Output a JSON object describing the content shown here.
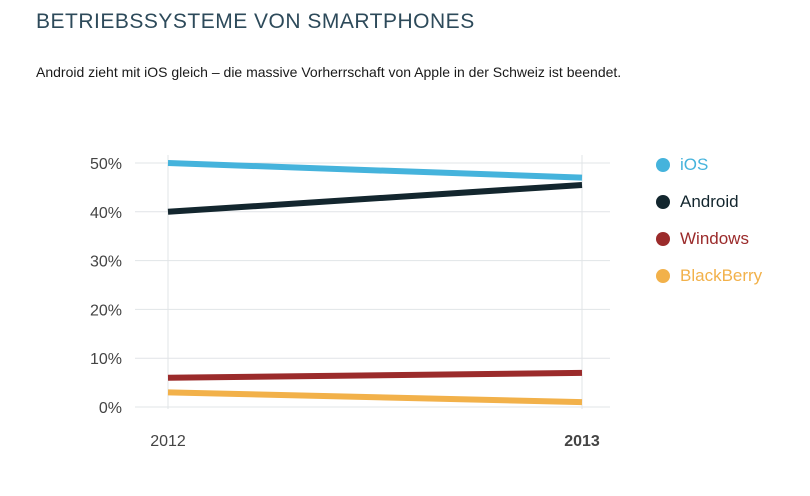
{
  "title": "BETRIEBSSYSTEME VON SMARTPHONES",
  "subtitle": "Android zieht mit iOS gleich – die massive Vorherrschaft von Apple in der Schweiz ist beendet.",
  "chart_data": {
    "type": "line",
    "title": "BETRIEBSSYSTEME VON SMARTPHONES",
    "subtitle": "Android zieht mit iOS gleich – die massive Vorherrschaft von Apple in der Schweiz ist beendet.",
    "x": [
      "2012",
      "2013"
    ],
    "y_ticks": [
      "0%",
      "10%",
      "20%",
      "30%",
      "40%",
      "50%"
    ],
    "ylim": [
      0,
      50
    ],
    "grid": true,
    "legend": "right",
    "series": [
      {
        "name": "iOS",
        "values": [
          50,
          47
        ],
        "color": "#45b3dc"
      },
      {
        "name": "Android",
        "values": [
          40,
          45.5
        ],
        "color": "#13262e"
      },
      {
        "name": "Windows",
        "values": [
          6,
          7
        ],
        "color": "#9b2b2b"
      },
      {
        "name": "BlackBerry",
        "values": [
          3,
          1
        ],
        "color": "#f2b14a"
      }
    ]
  }
}
